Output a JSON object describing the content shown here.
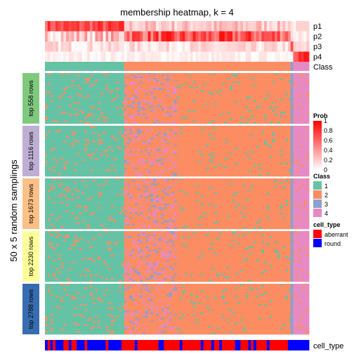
{
  "chart_data": {
    "type": "heatmap",
    "title": "membership heatmap, k = 4",
    "ylabel": "50 x 5 random samplings",
    "n_samples": 100,
    "prob_rows": [
      "p1",
      "p2",
      "p3",
      "p4"
    ],
    "class_row_label": "Class",
    "cell_type_row_label": "cell_type",
    "row_blocks": [
      "top 558 rows",
      "top 1116 rows",
      "top 1673 rows",
      "top 2230 rows",
      "top 2788 rows"
    ],
    "block_colors": [
      "#7fc97f",
      "#beaed4",
      "#fdc086",
      "#ffff99",
      "#386cb0"
    ],
    "sample_groups": [
      {
        "class": "1",
        "count": 30
      },
      {
        "class": "2",
        "count": 63
      },
      {
        "class": "3",
        "count": 1
      },
      {
        "class": "4",
        "count": 6
      }
    ],
    "prob_legend": {
      "title": "Prob",
      "ticks": [
        "1",
        "0.8",
        "0.6",
        "0.4",
        "0.2",
        "0"
      ],
      "low_color": "#ffffff",
      "high_color": "#ff0000"
    },
    "class_legend": {
      "title": "Class",
      "items": [
        {
          "label": "1",
          "color": "#66c2a5"
        },
        {
          "label": "2",
          "color": "#fc8d62"
        },
        {
          "label": "3",
          "color": "#8da0cb"
        },
        {
          "label": "4",
          "color": "#e78ac3"
        }
      ]
    },
    "cell_type_legend": {
      "title": "cell_type",
      "items": [
        {
          "label": "aberrant",
          "color": "#ff0000"
        },
        {
          "label": "round",
          "color": "#0000ff"
        }
      ]
    }
  }
}
